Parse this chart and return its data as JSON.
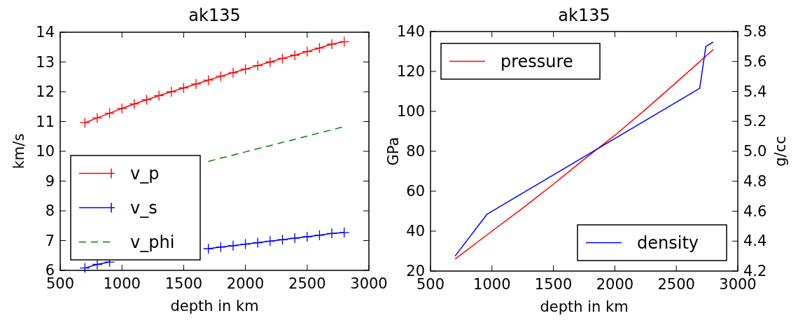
{
  "chart_data": [
    {
      "type": "line",
      "title": "ak135",
      "xlabel": "depth in km",
      "ylabel": "km/s",
      "xlim": [
        500,
        3000
      ],
      "xticks": [
        500,
        1000,
        1500,
        2000,
        2500,
        3000
      ],
      "ylim": [
        6,
        14
      ],
      "yticks": [
        6,
        7,
        8,
        9,
        10,
        11,
        12,
        13,
        14
      ],
      "legend": "bottom left",
      "grid": false,
      "x": [
        700,
        800,
        900,
        1000,
        1100,
        1200,
        1300,
        1400,
        1500,
        1600,
        1700,
        1800,
        1900,
        2000,
        2100,
        2200,
        2300,
        2400,
        2500,
        2600,
        2700,
        2800
      ],
      "series": [
        {
          "name": "v_p",
          "color": "#ff0000",
          "marker": "cross",
          "line_style": "solid",
          "values": [
            10.96,
            11.12,
            11.28,
            11.44,
            11.59,
            11.73,
            11.87,
            12.0,
            12.13,
            12.26,
            12.39,
            12.52,
            12.64,
            12.76,
            12.88,
            13.0,
            13.12,
            13.23,
            13.35,
            13.47,
            13.6,
            13.68
          ]
        },
        {
          "name": "v_s",
          "color": "#0000ff",
          "marker": "cross",
          "line_style": "solid",
          "values": [
            6.08,
            6.2,
            6.28,
            null,
            null,
            null,
            null,
            null,
            null,
            null,
            6.73,
            6.78,
            6.83,
            6.88,
            6.93,
            6.98,
            7.03,
            7.08,
            7.13,
            7.18,
            7.24,
            7.27
          ]
        },
        {
          "name": "v_phi",
          "color": "#008000",
          "marker": "none",
          "line_style": "dashed",
          "x": [
            1700,
            1800,
            1900,
            2000,
            2100,
            2200,
            2300,
            2400,
            2500,
            2600,
            2700,
            2800
          ],
          "values": [
            9.66,
            9.77,
            9.87,
            9.98,
            10.09,
            10.19,
            10.3,
            10.4,
            10.51,
            10.62,
            10.72,
            10.83
          ]
        }
      ]
    },
    {
      "type": "line",
      "title": "ak135",
      "xlabel": "depth in km",
      "ylabel": "GPa",
      "y2label": "g/cc",
      "xlim": [
        500,
        3000
      ],
      "xticks": [
        500,
        1000,
        1500,
        2000,
        2500,
        3000
      ],
      "ylim": [
        20,
        140
      ],
      "yticks": [
        20,
        40,
        60,
        80,
        100,
        120,
        140
      ],
      "y2lim": [
        4.2,
        5.8
      ],
      "y2ticks": [
        4.2,
        4.4,
        4.6,
        4.8,
        {
          "value": 5.0,
          "label": "5.0"
        },
        5.2,
        5.4,
        5.6,
        5.8
      ],
      "grid": false,
      "legend": [
        "top left",
        "bottom right"
      ],
      "series": [
        {
          "name": "pressure",
          "color": "#ff0000",
          "x": [
            700,
            1000,
            1250,
            1500,
            1750,
            2000,
            2250,
            2500,
            2800
          ],
          "values": [
            26,
            40,
            51.5,
            63.5,
            76,
            88,
            101,
            114.5,
            131
          ]
        },
        {
          "name": "density",
          "color": "#0000ff",
          "axis": "y2",
          "x": [
            700,
            960,
            2690,
            2740,
            2800
          ],
          "values": [
            4.3,
            4.58,
            5.42,
            5.7,
            5.73
          ]
        }
      ]
    }
  ]
}
